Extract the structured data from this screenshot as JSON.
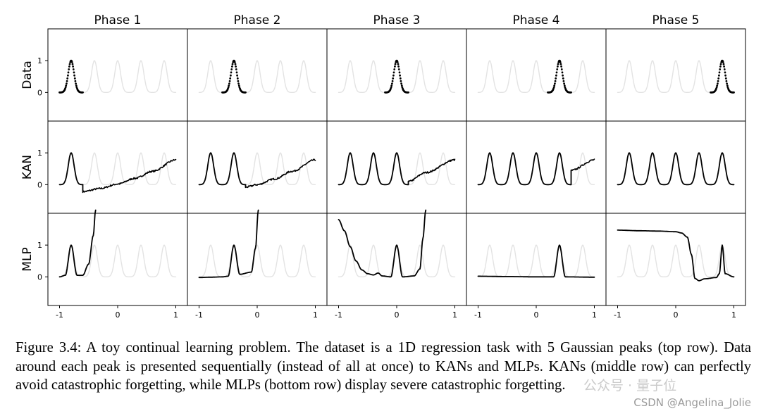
{
  "chart_data": {
    "type": "line",
    "layout": "grid 3 rows x 5 columns",
    "columns": [
      "Phase 1",
      "Phase 2",
      "Phase 3",
      "Phase 4",
      "Phase 5"
    ],
    "rows": [
      "Data",
      "KAN",
      "MLP"
    ],
    "x_ticks": [
      "-1",
      "0",
      "1"
    ],
    "y_ticks": [
      "0",
      "1"
    ],
    "xlim": [
      -1.2,
      1.2
    ],
    "ylim": [
      -0.9,
      2.0
    ],
    "peak_centers": [
      -0.8,
      -0.4,
      0.0,
      0.4,
      0.8
    ],
    "peak_width": 0.05,
    "colors": {
      "active": "#000000",
      "faded": "#e3e3e3",
      "border": "#000000"
    },
    "panels": {
      "data": [
        {
          "active_peak": 0
        },
        {
          "active_peak": 1
        },
        {
          "active_peak": 2
        },
        {
          "active_peak": 3
        },
        {
          "active_peak": 4
        }
      ],
      "kan": [
        {
          "learned_peaks": 1,
          "tail": [
            [
              -0.6,
              -0.22
            ],
            [
              -0.3,
              -0.12
            ],
            [
              0.0,
              0.02
            ],
            [
              0.3,
              0.2
            ],
            [
              0.6,
              0.42
            ],
            [
              1.0,
              0.78
            ]
          ]
        },
        {
          "learned_peaks": 2,
          "tail": [
            [
              -0.2,
              -0.08
            ],
            [
              0.0,
              0.0
            ],
            [
              0.3,
              0.18
            ],
            [
              0.6,
              0.42
            ],
            [
              1.0,
              0.78
            ]
          ]
        },
        {
          "learned_peaks": 3,
          "tail": [
            [
              0.2,
              0.1
            ],
            [
              0.5,
              0.38
            ],
            [
              1.0,
              0.78
            ]
          ]
        },
        {
          "learned_peaks": 4,
          "tail": [
            [
              0.6,
              0.45
            ],
            [
              1.0,
              0.78
            ]
          ]
        },
        {
          "learned_peaks": 5,
          "tail": []
        }
      ],
      "mlp": [
        {
          "curve": [
            [
              -1.0,
              0.0
            ],
            [
              -0.9,
              0.05
            ],
            [
              -0.8,
              1.0
            ],
            [
              -0.7,
              0.05
            ],
            [
              -0.6,
              0.05
            ],
            [
              -0.5,
              0.4
            ],
            [
              -0.42,
              1.3
            ],
            [
              -0.38,
              2.1
            ]
          ]
        },
        {
          "curve": [
            [
              -1.0,
              -0.02
            ],
            [
              -0.8,
              -0.01
            ],
            [
              -0.6,
              0.0
            ],
            [
              -0.5,
              0.02
            ],
            [
              -0.4,
              1.0
            ],
            [
              -0.3,
              0.08
            ],
            [
              -0.1,
              0.15
            ],
            [
              -0.03,
              0.9
            ],
            [
              0.02,
              2.1
            ]
          ]
        },
        {
          "curve": [
            [
              -1.0,
              1.8
            ],
            [
              -0.9,
              1.45
            ],
            [
              -0.8,
              0.95
            ],
            [
              -0.7,
              0.5
            ],
            [
              -0.6,
              0.22
            ],
            [
              -0.5,
              0.1
            ],
            [
              -0.4,
              0.06
            ],
            [
              -0.32,
              0.12
            ],
            [
              -0.25,
              0.03
            ],
            [
              -0.1,
              0.0
            ],
            [
              0.0,
              1.0
            ],
            [
              0.1,
              0.0
            ],
            [
              0.3,
              0.03
            ],
            [
              0.4,
              0.25
            ],
            [
              0.45,
              1.2
            ],
            [
              0.5,
              2.1
            ]
          ]
        },
        {
          "curve": [
            [
              -1.0,
              0.02
            ],
            [
              -0.5,
              0.01
            ],
            [
              0.0,
              0.0
            ],
            [
              0.3,
              0.0
            ],
            [
              0.4,
              1.0
            ],
            [
              0.5,
              0.0
            ],
            [
              1.0,
              -0.01
            ]
          ]
        },
        {
          "curve": [
            [
              -1.0,
              1.47
            ],
            [
              -0.6,
              1.45
            ],
            [
              -0.3,
              1.44
            ],
            [
              0.0,
              1.42
            ],
            [
              0.1,
              1.38
            ],
            [
              0.2,
              1.25
            ],
            [
              0.27,
              0.7
            ],
            [
              0.33,
              -0.05
            ],
            [
              0.4,
              -0.12
            ],
            [
              0.5,
              -0.06
            ],
            [
              0.7,
              -0.02
            ],
            [
              0.75,
              0.1
            ],
            [
              0.8,
              1.0
            ],
            [
              0.85,
              0.1
            ],
            [
              1.0,
              0.0
            ]
          ]
        }
      ]
    }
  },
  "caption": "Figure 3.4: A toy continual learning problem. The dataset is a 1D regression task with 5 Gaussian peaks (top row). Data around each peak is presented sequentially (instead of all at once) to KANs and MLPs. KANs (middle row) can perfectly avoid catastrophic forgetting, while MLPs (bottom row) display severe catastrophic forgetting.",
  "watermark_cn": "公众号 · 量子位",
  "watermark": "CSDN @Angelina_Jolie"
}
